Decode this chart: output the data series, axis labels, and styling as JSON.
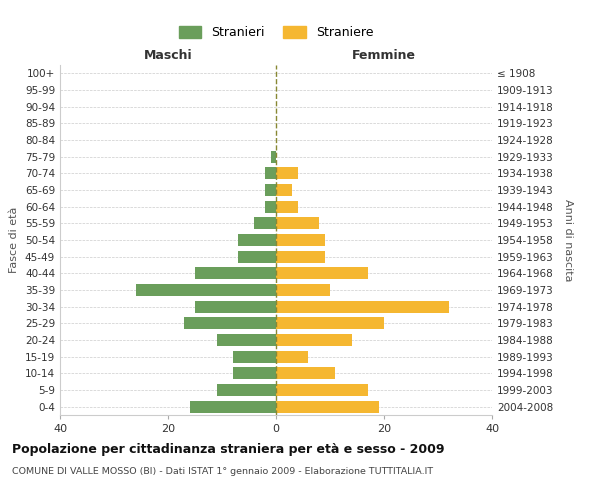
{
  "age_groups": [
    "0-4",
    "5-9",
    "10-14",
    "15-19",
    "20-24",
    "25-29",
    "30-34",
    "35-39",
    "40-44",
    "45-49",
    "50-54",
    "55-59",
    "60-64",
    "65-69",
    "70-74",
    "75-79",
    "80-84",
    "85-89",
    "90-94",
    "95-99",
    "100+"
  ],
  "birth_years": [
    "2004-2008",
    "1999-2003",
    "1994-1998",
    "1989-1993",
    "1984-1988",
    "1979-1983",
    "1974-1978",
    "1969-1973",
    "1964-1968",
    "1959-1963",
    "1954-1958",
    "1949-1953",
    "1944-1948",
    "1939-1943",
    "1934-1938",
    "1929-1933",
    "1924-1928",
    "1919-1923",
    "1914-1918",
    "1909-1913",
    "≤ 1908"
  ],
  "maschi": [
    16,
    11,
    8,
    8,
    11,
    17,
    15,
    26,
    15,
    7,
    7,
    4,
    2,
    2,
    2,
    1,
    0,
    0,
    0,
    0,
    0
  ],
  "femmine": [
    19,
    17,
    11,
    6,
    14,
    20,
    32,
    10,
    17,
    9,
    9,
    8,
    4,
    3,
    4,
    0,
    0,
    0,
    0,
    0,
    0
  ],
  "color_maschi": "#6a9e5b",
  "color_femmine": "#f5b731",
  "color_grid": "#cccccc",
  "color_dashed": "#888833",
  "xlabel_maschi": "Maschi",
  "xlabel_femmine": "Femmine",
  "ylabel_left": "Fasce di età",
  "ylabel_right": "Anni di nascita",
  "legend_maschi": "Stranieri",
  "legend_femmine": "Straniere",
  "title": "Popolazione per cittadinanza straniera per età e sesso - 2009",
  "subtitle": "COMUNE DI VALLE MOSSO (BI) - Dati ISTAT 1° gennaio 2009 - Elaborazione TUTTITALIA.IT",
  "xlim": 40,
  "background_color": "#ffffff"
}
